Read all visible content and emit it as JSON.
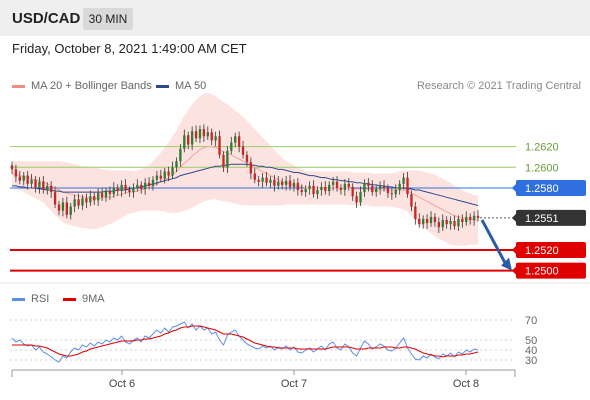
{
  "header": {
    "symbol": "USD/CAD",
    "timeframe": "30 MIN"
  },
  "timestamp": "Friday, October 8, 2021 1:49:00 AM CET",
  "copyright": "Research © 2021 Trading Central",
  "colors": {
    "bollinger": "#f28b82",
    "ma50": "#2c4a8c",
    "support_line": "#e00000",
    "pivot_line": "#2f6fe0",
    "target_line": "#9ccc65",
    "last_price_tag": "#333333",
    "bull": "#2e7d32",
    "bear": "#c62828",
    "rsi": "#5b8fe6",
    "rsi_ma": "#e00000",
    "arrow": "#2a5aa8"
  },
  "chart_data": [
    {
      "type": "candlestick",
      "title": "",
      "legend": [
        "MA 20 + Bollinger Bands",
        "MA 50"
      ],
      "legend_placement": "top-left",
      "ylim": [
        1.2488,
        1.267
      ],
      "x_ticks": [
        "Oct 6",
        "Oct 7",
        "Oct 8"
      ],
      "price_levels": [
        {
          "label": "1.2620",
          "value": 1.262,
          "kind": "target"
        },
        {
          "label": "1.2600",
          "value": 1.26,
          "kind": "target"
        },
        {
          "label": "1.2580",
          "value": 1.258,
          "kind": "pivot"
        },
        {
          "label": "1.2551",
          "value": 1.2551,
          "kind": "last"
        },
        {
          "label": "1.2520",
          "value": 1.252,
          "kind": "support"
        },
        {
          "label": "1.2500",
          "value": 1.25,
          "kind": "support"
        }
      ],
      "close": [
        1.2598,
        1.2591,
        1.2587,
        1.2592,
        1.2584,
        1.2588,
        1.258,
        1.2586,
        1.2578,
        1.2582,
        1.2576,
        1.2564,
        1.2558,
        1.2566,
        1.2554,
        1.2562,
        1.2569,
        1.2563,
        1.257,
        1.2566,
        1.2572,
        1.2568,
        1.2575,
        1.2571,
        1.2577,
        1.2574,
        1.258,
        1.2577,
        1.2583,
        1.2578,
        1.2576,
        1.258,
        1.2583,
        1.2579,
        1.2585,
        1.2582,
        1.2588,
        1.2592,
        1.2589,
        1.2596,
        1.2592,
        1.26,
        1.2606,
        1.2618,
        1.2631,
        1.2622,
        1.2635,
        1.2628,
        1.2637,
        1.263,
        1.2634,
        1.2626,
        1.263,
        1.2612,
        1.26,
        1.2616,
        1.2624,
        1.263,
        1.262,
        1.2612,
        1.2605,
        1.2594,
        1.2588,
        1.2586,
        1.259,
        1.2585,
        1.2588,
        1.2582,
        1.2586,
        1.2583,
        1.2587,
        1.2581,
        1.2585,
        1.2578,
        1.2576,
        1.2579,
        1.2582,
        1.2574,
        1.2578,
        1.2581,
        1.2577,
        1.2583,
        1.2586,
        1.258,
        1.2578,
        1.2584,
        1.2581,
        1.2572,
        1.2566,
        1.2576,
        1.2585,
        1.2582,
        1.2576,
        1.2579,
        1.2582,
        1.258,
        1.2575,
        1.2574,
        1.2578,
        1.2584,
        1.259,
        1.2574,
        1.2562,
        1.255,
        1.2545,
        1.255,
        1.2546,
        1.2552,
        1.2547,
        1.2542,
        1.2549,
        1.2545,
        1.2548,
        1.2543,
        1.255,
        1.2547,
        1.2552,
        1.2549,
        1.2553,
        1.2551
      ],
      "ma20": [
        1.2594,
        1.2593,
        1.2592,
        1.2591,
        1.259,
        1.2589,
        1.2588,
        1.2587,
        1.2586,
        1.2584,
        1.2582,
        1.258,
        1.2578,
        1.2576,
        1.2575,
        1.2574,
        1.2573,
        1.2572,
        1.2571,
        1.2571,
        1.257,
        1.257,
        1.257,
        1.257,
        1.2571,
        1.2571,
        1.2572,
        1.2573,
        1.2574,
        1.2575,
        1.2576,
        1.2576,
        1.2577,
        1.2578,
        1.2579,
        1.258,
        1.2582,
        1.2584,
        1.2586,
        1.2588,
        1.259,
        1.2593,
        1.2596,
        1.26,
        1.2604,
        1.2607,
        1.2611,
        1.2614,
        1.2617,
        1.2619,
        1.262,
        1.262,
        1.2619,
        1.2617,
        1.2615,
        1.2614,
        1.2612,
        1.261,
        1.2608,
        1.2606,
        1.2604,
        1.2602,
        1.26,
        1.2598,
        1.2596,
        1.2594,
        1.2592,
        1.259,
        1.2588,
        1.2586,
        1.2585,
        1.2584,
        1.2583,
        1.2582,
        1.2581,
        1.258,
        1.258,
        1.258,
        1.258,
        1.258,
        1.258,
        1.258,
        1.258,
        1.258,
        1.258,
        1.258,
        1.258,
        1.2579,
        1.2579,
        1.2579,
        1.2579,
        1.2579,
        1.2578,
        1.2578,
        1.2578,
        1.2578,
        1.2578,
        1.2578,
        1.2578,
        1.2578,
        1.2578,
        1.2577,
        1.2575,
        1.2573,
        1.2571,
        1.2569,
        1.2567,
        1.2565,
        1.2563,
        1.2561,
        1.2559,
        1.2557,
        1.2555,
        1.2553,
        1.2552,
        1.2551,
        1.255,
        1.255,
        1.2549,
        1.2549
      ],
      "bb_width": [
        0.0012,
        0.0013,
        0.0014,
        0.0015,
        0.0016,
        0.0017,
        0.0018,
        0.0019,
        0.002,
        0.0022,
        0.0024,
        0.0026,
        0.0028,
        0.0029,
        0.003,
        0.003,
        0.003,
        0.003,
        0.003,
        0.003,
        0.003,
        0.003,
        0.0029,
        0.0028,
        0.0027,
        0.0026,
        0.0025,
        0.0024,
        0.0023,
        0.0022,
        0.0021,
        0.002,
        0.002,
        0.002,
        0.0021,
        0.0022,
        0.0024,
        0.0026,
        0.0028,
        0.0031,
        0.0034,
        0.0037,
        0.004,
        0.0043,
        0.0046,
        0.0048,
        0.005,
        0.0051,
        0.0052,
        0.0052,
        0.0052,
        0.0051,
        0.005,
        0.0049,
        0.0048,
        0.0047,
        0.0046,
        0.0045,
        0.0044,
        0.0043,
        0.0041,
        0.0039,
        0.0037,
        0.0035,
        0.0033,
        0.0031,
        0.0029,
        0.0027,
        0.0025,
        0.0023,
        0.0021,
        0.002,
        0.0019,
        0.0018,
        0.0017,
        0.0016,
        0.0016,
        0.0016,
        0.0016,
        0.0016,
        0.0016,
        0.0016,
        0.0016,
        0.0016,
        0.0016,
        0.0016,
        0.0016,
        0.0016,
        0.0016,
        0.0016,
        0.0016,
        0.0016,
        0.0016,
        0.0016,
        0.0016,
        0.0016,
        0.0016,
        0.0016,
        0.0017,
        0.0018,
        0.0019,
        0.002,
        0.0022,
        0.0024,
        0.0026,
        0.0027,
        0.0028,
        0.0029,
        0.003,
        0.003,
        0.003,
        0.003,
        0.003,
        0.0029,
        0.0028,
        0.0027,
        0.0026,
        0.0025,
        0.0024,
        0.0024
      ],
      "ma50": [
        1.2582,
        1.2582,
        1.2581,
        1.2581,
        1.258,
        1.258,
        1.258,
        1.2579,
        1.2579,
        1.2578,
        1.2578,
        1.2577,
        1.2577,
        1.2576,
        1.2576,
        1.2576,
        1.2576,
        1.2576,
        1.2576,
        1.2576,
        1.2576,
        1.2576,
        1.2576,
        1.2576,
        1.2577,
        1.2577,
        1.2577,
        1.2578,
        1.2578,
        1.2578,
        1.2579,
        1.258,
        1.258,
        1.2581,
        1.2582,
        1.2583,
        1.2584,
        1.2585,
        1.2586,
        1.2587,
        1.2588,
        1.2589,
        1.259,
        1.2592,
        1.2593,
        1.2594,
        1.2595,
        1.2596,
        1.2597,
        1.2598,
        1.2599,
        1.26,
        1.2601,
        1.2601,
        1.2602,
        1.2602,
        1.2603,
        1.2603,
        1.2603,
        1.2603,
        1.2603,
        1.2602,
        1.2602,
        1.2601,
        1.2601,
        1.26,
        1.26,
        1.2599,
        1.2598,
        1.2598,
        1.2597,
        1.2596,
        1.2595,
        1.2595,
        1.2594,
        1.2593,
        1.2592,
        1.2592,
        1.2591,
        1.259,
        1.259,
        1.2589,
        1.2588,
        1.2588,
        1.2587,
        1.2587,
        1.2586,
        1.2586,
        1.2585,
        1.2585,
        1.2584,
        1.2584,
        1.2583,
        1.2583,
        1.2582,
        1.2582,
        1.2581,
        1.2581,
        1.258,
        1.258,
        1.258,
        1.2579,
        1.2579,
        1.2578,
        1.2578,
        1.2577,
        1.2576,
        1.2575,
        1.2574,
        1.2573,
        1.2572,
        1.2571,
        1.257,
        1.2569,
        1.2568,
        1.2567,
        1.2566,
        1.2565,
        1.2564,
        1.2563
      ],
      "projection": {
        "from": 1.2551,
        "to": 1.25
      }
    },
    {
      "type": "line",
      "title": "",
      "legend": [
        "RSI",
        "9MA"
      ],
      "ylim": [
        25,
        75
      ],
      "y_ticks": [
        70,
        50,
        40,
        30
      ],
      "rsi": [
        52,
        48,
        50,
        46,
        44,
        45,
        40,
        43,
        38,
        36,
        33,
        30,
        28,
        34,
        32,
        38,
        42,
        40,
        45,
        43,
        47,
        44,
        48,
        46,
        50,
        48,
        52,
        50,
        54,
        48,
        46,
        50,
        52,
        48,
        54,
        52,
        56,
        60,
        57,
        62,
        58,
        63,
        64,
        66,
        68,
        62,
        66,
        60,
        64,
        60,
        62,
        56,
        58,
        50,
        45,
        55,
        58,
        60,
        54,
        50,
        46,
        44,
        42,
        41,
        44,
        42,
        44,
        40,
        43,
        41,
        44,
        40,
        43,
        38,
        37,
        40,
        42,
        38,
        41,
        44,
        40,
        46,
        48,
        42,
        40,
        46,
        43,
        37,
        34,
        42,
        49,
        46,
        41,
        43,
        46,
        44,
        40,
        39,
        42,
        47,
        52,
        42,
        36,
        31,
        30,
        34,
        32,
        36,
        33,
        31,
        36,
        34,
        37,
        33,
        38,
        36,
        40,
        38,
        41,
        40
      ],
      "rsi_ma": [
        45,
        45,
        45,
        45,
        45,
        45,
        44,
        44,
        43,
        42,
        40,
        38,
        36,
        35,
        34,
        34,
        35,
        36,
        38,
        39,
        41,
        42,
        43,
        44,
        45,
        46,
        47,
        48,
        49,
        49,
        49,
        49,
        50,
        50,
        51,
        51,
        52,
        53,
        54,
        56,
        57,
        59,
        60,
        62,
        63,
        63,
        64,
        64,
        64,
        63,
        62,
        61,
        60,
        58,
        56,
        56,
        56,
        55,
        54,
        53,
        51,
        49,
        47,
        46,
        45,
        44,
        43,
        43,
        42,
        42,
        42,
        42,
        42,
        41,
        41,
        41,
        41,
        41,
        41,
        41,
        41,
        42,
        43,
        43,
        43,
        43,
        43,
        42,
        41,
        41,
        41,
        42,
        42,
        42,
        42,
        43,
        43,
        43,
        42,
        42,
        43,
        43,
        42,
        41,
        39,
        37,
        36,
        35,
        34,
        34,
        33,
        34,
        34,
        34,
        35,
        35,
        36,
        36,
        37,
        38
      ]
    }
  ]
}
